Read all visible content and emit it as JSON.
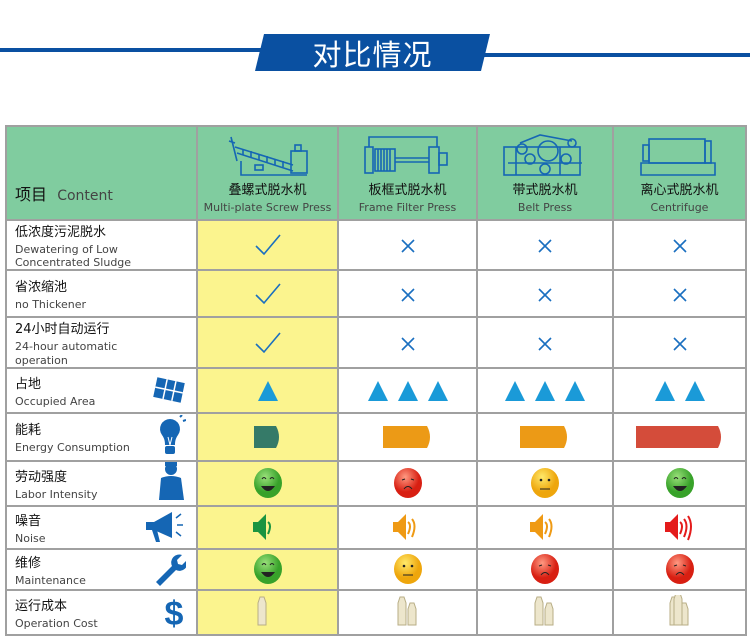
{
  "title": "对比情况",
  "colors": {
    "brand": "#0a50a1",
    "header_bg": "#80cc9f",
    "highlight": "#fbf48e",
    "symbol_blue": "#1a9ad8"
  },
  "header": {
    "item_cn": "项目",
    "item_en": "Content",
    "machines": [
      {
        "cn": "叠螺式脱水机",
        "en": "Multi-plate Screw Press",
        "icon": "screw-press-icon"
      },
      {
        "cn": "板框式脱水机",
        "en": "Frame Filter Press",
        "icon": "frame-press-icon"
      },
      {
        "cn": "带式脱水机",
        "en": "Belt Press",
        "icon": "belt-press-icon"
      },
      {
        "cn": "离心式脱水机",
        "en": "Centrifuge",
        "icon": "centrifuge-icon"
      }
    ]
  },
  "rows": [
    {
      "cn": "低浓度污泥脱水",
      "en": "Dewatering of Low Concentrated Sludge",
      "type": "check",
      "values": [
        "check",
        "cross",
        "cross",
        "cross"
      ]
    },
    {
      "cn": "省浓缩池",
      "en": "no Thickener",
      "type": "check",
      "values": [
        "check",
        "cross",
        "cross",
        "cross"
      ]
    },
    {
      "cn": "24小时自动运行",
      "en": "24-hour automatic operation",
      "type": "check",
      "values": [
        "check",
        "cross",
        "cross",
        "cross"
      ]
    },
    {
      "cn": "占地",
      "en": "Occupied Area",
      "icon": "floor-plan-icon",
      "type": "triangles",
      "values": [
        1,
        3,
        3,
        2
      ]
    },
    {
      "cn": "能耗",
      "en": "Energy Consumption",
      "icon": "lightbulb-icon",
      "type": "energy",
      "values": [
        {
          "level": 1,
          "color": "#357a68"
        },
        {
          "level": 2,
          "color": "#ec9a16"
        },
        {
          "level": 2,
          "color": "#ec9a16"
        },
        {
          "level": 4,
          "color": "#d44c3a"
        }
      ]
    },
    {
      "cn": "劳动强度",
      "en": "Labor Intensity",
      "icon": "worker-icon",
      "type": "face",
      "values": [
        "happy",
        "sad",
        "neutral",
        "happy"
      ]
    },
    {
      "cn": "噪音",
      "en": "Noise",
      "icon": "megaphone-icon",
      "type": "noise",
      "values": [
        {
          "level": 1,
          "color": "#1a9440"
        },
        {
          "level": 2,
          "color": "#ef9a14"
        },
        {
          "level": 2,
          "color": "#ef9a14"
        },
        {
          "level": 3,
          "color": "#e41b1b"
        }
      ]
    },
    {
      "cn": "维修",
      "en": "Maintenance",
      "icon": "wrench-icon",
      "type": "face",
      "values": [
        "happy",
        "neutral",
        "sad",
        "sad"
      ]
    },
    {
      "cn": "运行成本",
      "en": "Operation Cost",
      "icon": "dollar-icon",
      "type": "bags",
      "values": [
        1,
        2,
        2,
        3
      ]
    }
  ]
}
